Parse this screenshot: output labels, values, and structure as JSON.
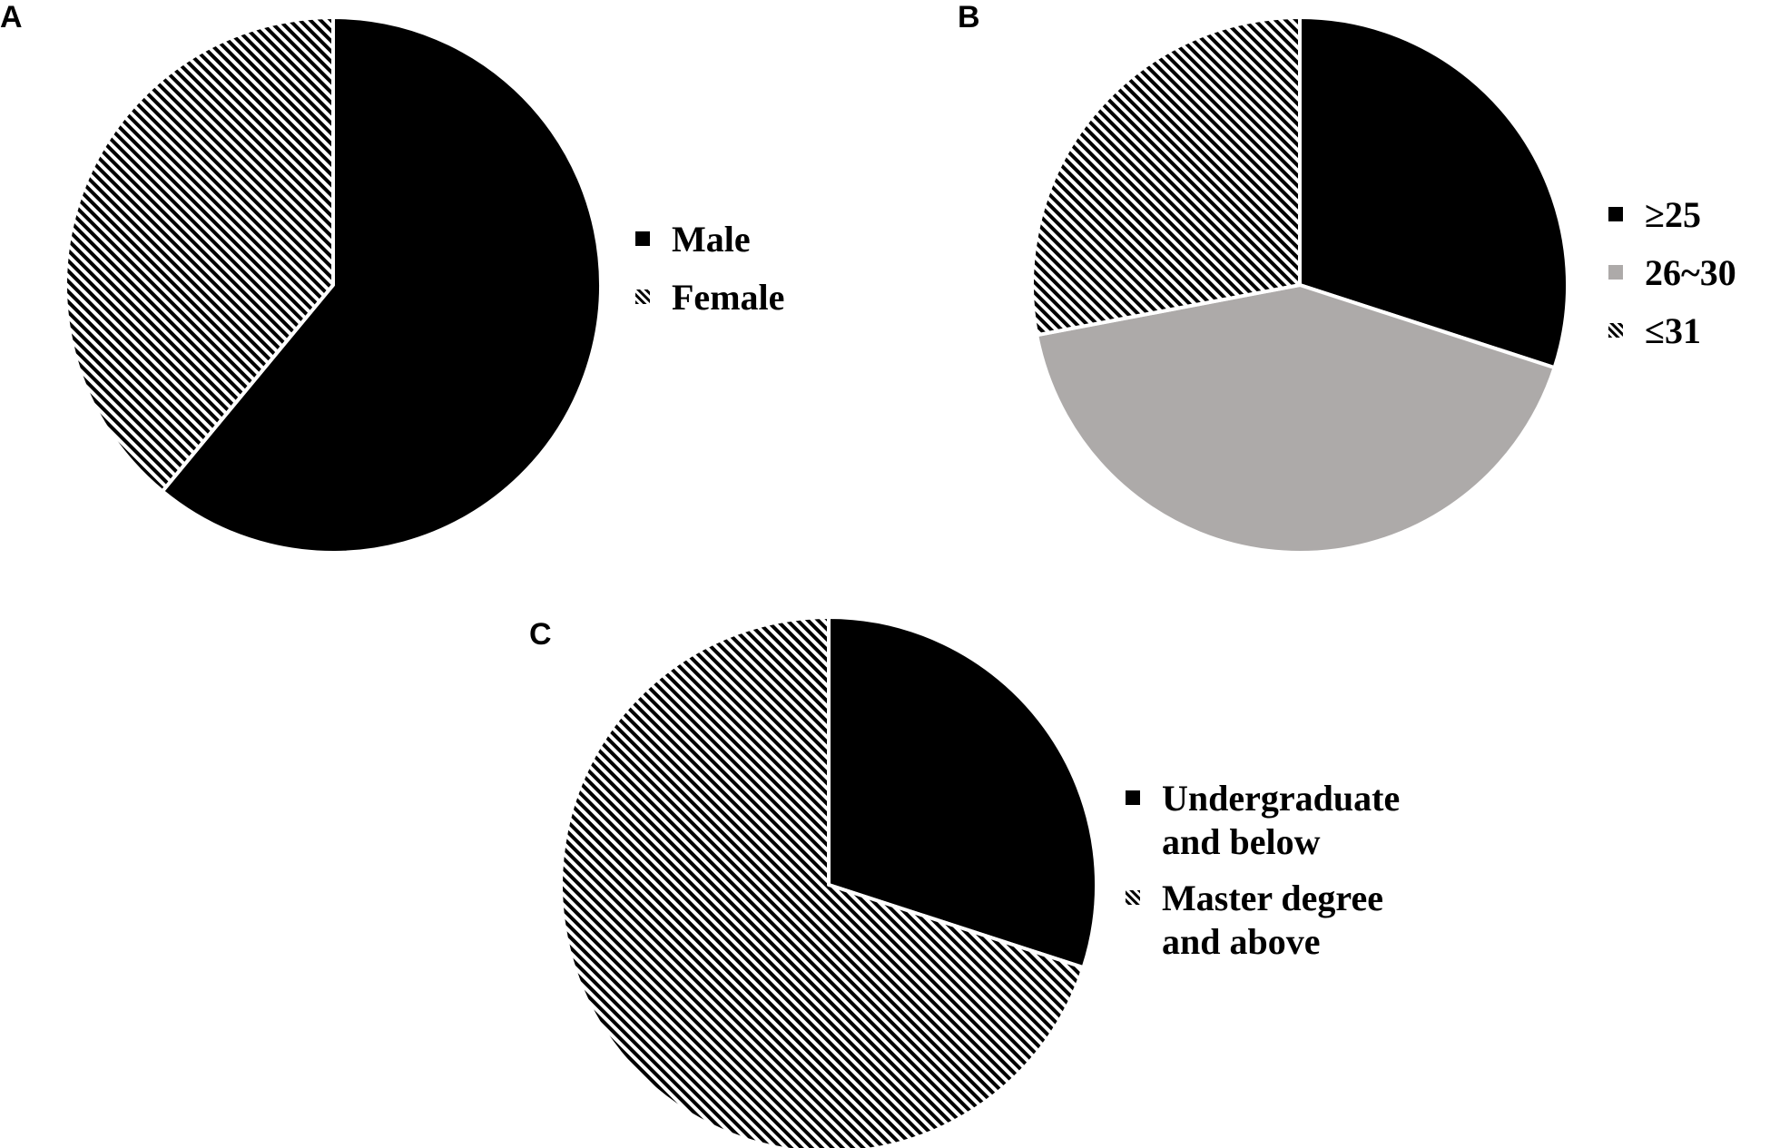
{
  "chart_data": [
    {
      "panel": "A",
      "type": "pie",
      "start_angle_deg": 0,
      "categories": [
        "Male",
        "Female"
      ],
      "values": [
        61,
        39
      ],
      "fills": [
        "solid-black",
        "hatch-fine"
      ],
      "legend": [
        {
          "lines": [
            "Male"
          ],
          "swatch": "solid-black"
        },
        {
          "lines": [
            "Female"
          ],
          "swatch": "hatch-fine"
        }
      ],
      "legend_position": "right"
    },
    {
      "panel": "B",
      "type": "pie",
      "start_angle_deg": 0,
      "categories": [
        "≥25",
        "26~30",
        "≤31"
      ],
      "values": [
        30,
        42,
        28
      ],
      "fills": [
        "solid-black",
        "solid-gray",
        "hatch-fine"
      ],
      "legend": [
        {
          "lines": [
            "≥25"
          ],
          "swatch": "solid-black"
        },
        {
          "lines": [
            "26~30"
          ],
          "swatch": "solid-gray"
        },
        {
          "lines": [
            "≤31"
          ],
          "swatch": "hatch-fine"
        }
      ],
      "legend_position": "right"
    },
    {
      "panel": "C",
      "type": "pie",
      "start_angle_deg": 0,
      "categories": [
        "Undergraduate and below",
        "Master degree and above"
      ],
      "values": [
        30,
        70
      ],
      "fills": [
        "solid-black",
        "hatch-fine"
      ],
      "legend": [
        {
          "lines": [
            "Undergraduate",
            "and below"
          ],
          "swatch": "solid-black"
        },
        {
          "lines": [
            "Master degree",
            "and above"
          ],
          "swatch": "hatch-fine"
        }
      ],
      "legend_position": "right"
    }
  ],
  "colors": {
    "solid-black": "#000000",
    "solid-gray": "#ADAAA9",
    "hatch-line": "#000000",
    "hatch-bg": "#ffffff",
    "separator": "#ffffff"
  }
}
